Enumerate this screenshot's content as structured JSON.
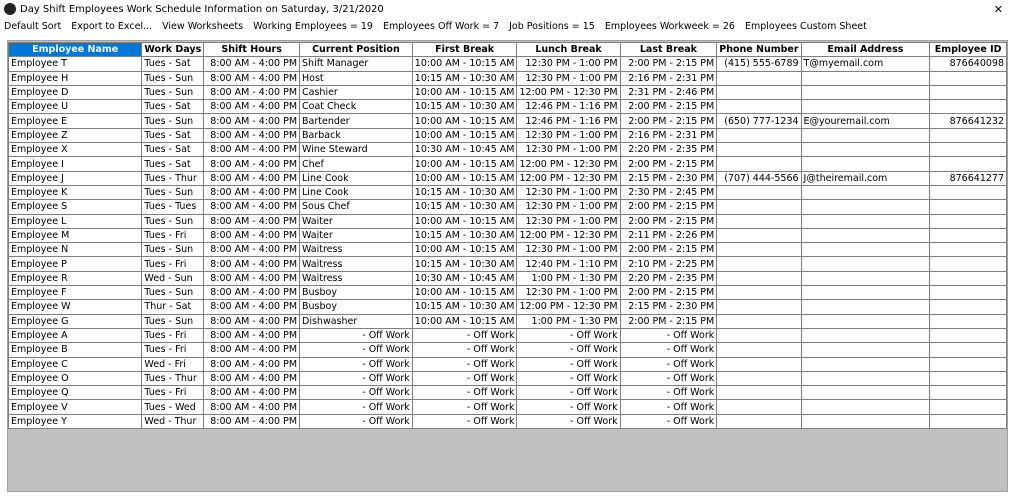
{
  "window": {
    "title": "Day Shift Employees Work Schedule Information on Saturday, 3/21/2020",
    "close": "✕"
  },
  "menu": [
    "Default Sort",
    "Export to Excel...",
    "View Worksheets",
    "Working Employees = 19",
    "Employees Off Work = 7",
    "Job Positions = 15",
    "Employees Workweek = 26",
    "Employees Custom Sheet"
  ],
  "table": {
    "columns": [
      "Employee Name",
      "Work Days",
      "Shift Hours",
      "Current Position",
      "First Break",
      "Lunch Break",
      "Last Break",
      "Phone Number",
      "Email Address",
      "Employee ID"
    ],
    "rows": [
      [
        "Employee T",
        "Tues - Sat",
        "8:00 AM - 4:00 PM",
        "Shift Manager",
        "10:00 AM - 10:15 AM",
        "12:30 PM - 1:00 PM",
        "2:00 PM - 2:15 PM",
        "(415) 555-6789",
        "T@myemail.com",
        "876640098"
      ],
      [
        "Employee H",
        "Tues - Sun",
        "8:00 AM - 4:00 PM",
        "Host",
        "10:15 AM - 10:30 AM",
        "12:30 PM - 1:00 PM",
        "2:16 PM - 2:31 PM",
        null,
        null,
        null
      ],
      [
        "Employee D",
        "Tues - Sun",
        "8:00 AM - 4:00 PM",
        "Cashier",
        "10:00 AM - 10:15 AM",
        "12:00 PM - 12:30 PM",
        "2:31 PM - 2:46 PM",
        null,
        null,
        null
      ],
      [
        "Employee U",
        "Tues - Sat",
        "8:00 AM - 4:00 PM",
        "Coat Check",
        "10:15 AM - 10:30 AM",
        "12:46 PM - 1:16 PM",
        "2:00 PM - 2:15 PM",
        null,
        null,
        null
      ],
      [
        "Employee E",
        "Tues - Sun",
        "8:00 AM - 4:00 PM",
        "Bartender",
        "10:00 AM - 10:15 AM",
        "12:46 PM - 1:16 PM",
        "2:00 PM - 2:15 PM",
        "(650) 777-1234",
        "E@youremail.com",
        "876641232"
      ],
      [
        "Employee Z",
        "Tues - Sat",
        "8:00 AM - 4:00 PM",
        "Barback",
        "10:00 AM - 10:15 AM",
        "12:30 PM - 1:00 PM",
        "2:16 PM - 2:31 PM",
        null,
        null,
        null
      ],
      [
        "Employee X",
        "Tues - Sat",
        "8:00 AM - 4:00 PM",
        "Wine Steward",
        "10:30 AM - 10:45 AM",
        "12:30 PM - 1:00 PM",
        "2:20 PM - 2:35 PM",
        null,
        null,
        null
      ],
      [
        "Employee I",
        "Tues - Sat",
        "8:00 AM - 4:00 PM",
        "Chef",
        "10:00 AM - 10:15 AM",
        "12:00 PM - 12:30 PM",
        "2:00 PM - 2:15 PM",
        null,
        null,
        null
      ],
      [
        "Employee J",
        "Tues - Thur",
        "8:00 AM - 4:00 PM",
        "Line Cook",
        "10:00 AM - 10:15 AM",
        "12:00 PM - 12:30 PM",
        "2:15 PM - 2:30 PM",
        "(707) 444-5566",
        "J@theiremail.com",
        "876641277"
      ],
      [
        "Employee K",
        "Tues - Sun",
        "8:00 AM - 4:00 PM",
        "Line Cook",
        "10:15 AM - 10:30 AM",
        "12:30 PM - 1:00 PM",
        "2:30 PM - 2:45 PM",
        null,
        null,
        null
      ],
      [
        "Employee S",
        "Tues - Tues",
        "8:00 AM - 4:00 PM",
        "Sous Chef",
        "10:15 AM - 10:30 AM",
        "12:30 PM - 1:00 PM",
        "2:00 PM - 2:15 PM",
        null,
        null,
        null
      ],
      [
        "Employee L",
        "Tues - Sun",
        "8:00 AM - 4:00 PM",
        "Waiter",
        "10:00 AM - 10:15 AM",
        "12:30 PM - 1:00 PM",
        "2:00 PM - 2:15 PM",
        null,
        null,
        null
      ],
      [
        "Employee M",
        "Tues - Fri",
        "8:00 AM - 4:00 PM",
        "Waiter",
        "10:15 AM - 10:30 AM",
        "12:00 PM - 12:30 PM",
        "2:11 PM - 2:26 PM",
        null,
        null,
        null
      ],
      [
        "Employee N",
        "Tues - Sun",
        "8:00 AM - 4:00 PM",
        "Waitress",
        "10:00 AM - 10:15 AM",
        "12:30 PM - 1:00 PM",
        "2:00 PM - 2:15 PM",
        null,
        null,
        null
      ],
      [
        "Employee P",
        "Tues - Fri",
        "8:00 AM - 4:00 PM",
        "Waitress",
        "10:15 AM - 10:30 AM",
        "12:40 PM - 1:10 PM",
        "2:10 PM - 2:25 PM",
        null,
        null,
        null
      ],
      [
        "Employee R",
        "Wed - Sun",
        "8:00 AM - 4:00 PM",
        "Waitress",
        "10:30 AM - 10:45 AM",
        "1:00 PM - 1:30 PM",
        "2:20 PM - 2:35 PM",
        null,
        null,
        null
      ],
      [
        "Employee F",
        "Tues - Sun",
        "8:00 AM - 4:00 PM",
        "Busboy",
        "10:00 AM - 10:15 AM",
        "12:30 PM - 1:00 PM",
        "2:00 PM - 2:15 PM",
        null,
        null,
        null
      ],
      [
        "Employee W",
        "Thur - Sat",
        "8:00 AM - 4:00 PM",
        "Busboy",
        "10:15 AM - 10:30 AM",
        "12:00 PM - 12:30 PM",
        "2:15 PM - 2:30 PM",
        null,
        null,
        null
      ],
      [
        "Employee G",
        "Tues - Sun",
        "8:00 AM - 4:00 PM",
        "Dishwasher",
        "10:00 AM - 10:15 AM",
        "1:00 PM - 1:30 PM",
        "2:00 PM - 2:15 PM",
        null,
        null,
        null
      ],
      [
        "Employee A",
        "Tues - Fri",
        "8:00 AM - 4:00 PM",
        "- Off Work",
        "- Off Work",
        "- Off Work",
        "- Off Work",
        null,
        null,
        null
      ],
      [
        "Employee B",
        "Tues - Fri",
        "8:00 AM - 4:00 PM",
        "- Off Work",
        "- Off Work",
        "- Off Work",
        "- Off Work",
        null,
        null,
        null
      ],
      [
        "Employee C",
        "Wed - Fri",
        "8:00 AM - 4:00 PM",
        "- Off Work",
        "- Off Work",
        "- Off Work",
        "- Off Work",
        null,
        null,
        null
      ],
      [
        "Employee O",
        "Tues - Thur",
        "8:00 AM - 4:00 PM",
        "- Off Work",
        "- Off Work",
        "- Off Work",
        "- Off Work",
        null,
        null,
        null
      ],
      [
        "Employee Q",
        "Tues - Fri",
        "8:00 AM - 4:00 PM",
        "- Off Work",
        "- Off Work",
        "- Off Work",
        "- Off Work",
        null,
        null,
        null
      ],
      [
        "Employee V",
        "Tues - Wed",
        "8:00 AM - 4:00 PM",
        "- Off Work",
        "- Off Work",
        "- Off Work",
        "- Off Work",
        null,
        null,
        null
      ],
      [
        "Employee Y",
        "Wed - Thur",
        "8:00 AM - 4:00 PM",
        "- Off Work",
        "- Off Work",
        "- Off Work",
        "- Off Work",
        null,
        null,
        null
      ]
    ]
  }
}
